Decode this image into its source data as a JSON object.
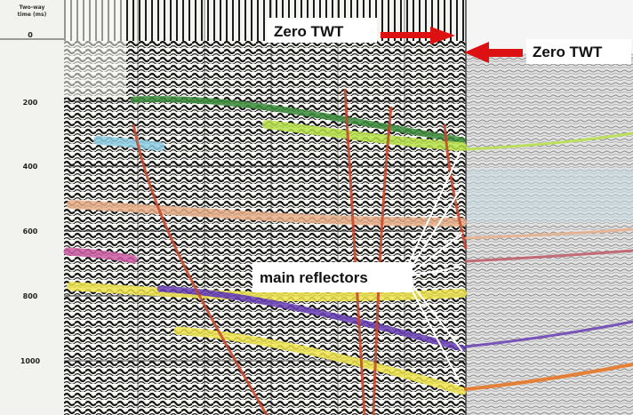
{
  "figure": {
    "axis_header": [
      "Two-way",
      "time (ms)"
    ],
    "axis_ticks": [
      "0",
      "200",
      "400",
      "600",
      "800",
      "1000"
    ],
    "labels": {
      "zero_twt_left": "Zero TWT",
      "zero_twt_right": "Zero TWT",
      "main_reflectors": "main reflectors"
    },
    "colors": {
      "arrow": "#dd1111",
      "fault": "#c8452a",
      "pointer_lines": "#ffffff",
      "horizon_green": "#b9e34a",
      "horizon_blue": "#8fd0e6",
      "horizon_peach": "#e9b08a",
      "horizon_pink": "#cf5fa6",
      "horizon_yellow": "#f0e64e",
      "horizon_purple": "#6a3fb5",
      "horizon_orange": "#e8731e"
    }
  }
}
